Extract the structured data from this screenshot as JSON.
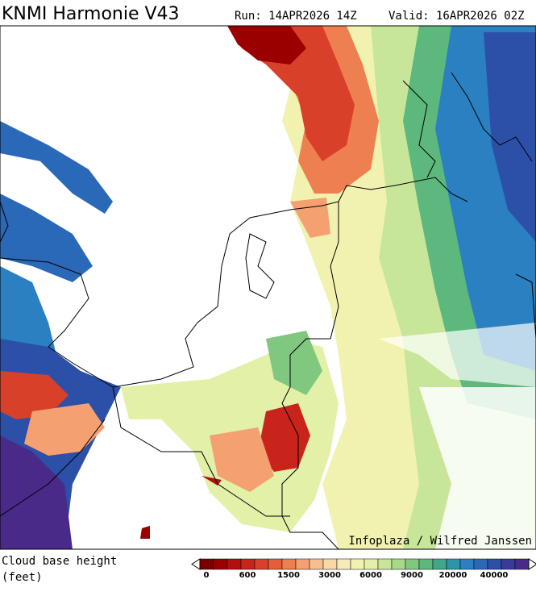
{
  "header": {
    "title": "KNMI Harmonie V43",
    "run": "Run: 14APR2026 14Z",
    "valid": "Valid: 16APR2026 02Z"
  },
  "map": {
    "credit": "Infoplaza / Wilfred Janssen"
  },
  "legend": {
    "title_line1": "Cloud base height",
    "title_line2": "(feet)",
    "labels": [
      "0",
      "600",
      "1500",
      "3000",
      "6000",
      "9000",
      "20000",
      "40000"
    ],
    "colors": [
      "#7a0000",
      "#9a0000",
      "#b30f0f",
      "#c8241c",
      "#d9402a",
      "#e55e3a",
      "#ee7f50",
      "#f4a070",
      "#f7bf90",
      "#f8d8a8",
      "#f6eab8",
      "#f2f2b0",
      "#e2f0a8",
      "#c8e69a",
      "#a8d88c",
      "#80c880",
      "#5cb87c",
      "#3fa88a",
      "#2d95a8",
      "#2a80c0",
      "#2a68b8",
      "#2c50a8",
      "#3a3a98",
      "#4a2a88"
    ]
  }
}
